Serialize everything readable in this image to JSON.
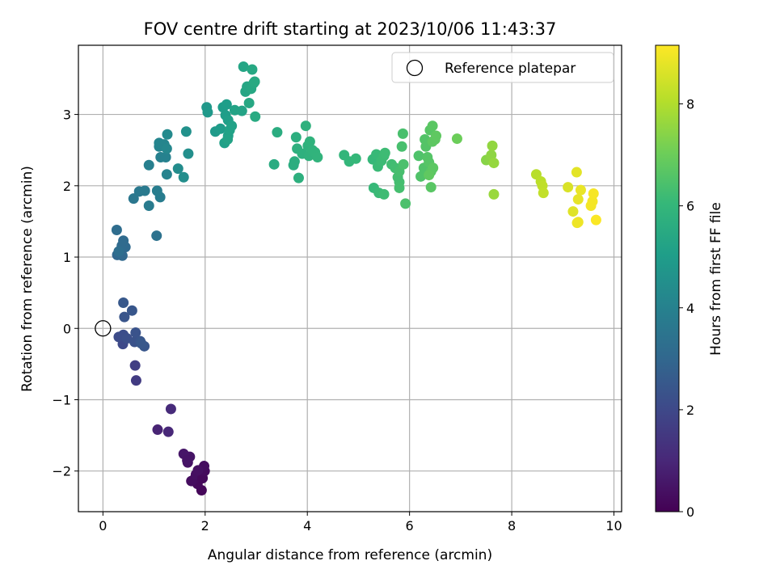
{
  "chart_data": {
    "type": "scatter",
    "title": "FOV centre drift starting at 2023/10/06 11:43:37",
    "xlabel": "Angular distance from reference (arcmin)",
    "ylabel": "Rotation from reference (arcmin)",
    "xlim": [
      -0.48,
      10.15
    ],
    "ylim": [
      -2.57,
      3.97
    ],
    "xticks": [
      0,
      2,
      4,
      6,
      8,
      10
    ],
    "yticks": [
      -2,
      -1,
      0,
      1,
      2,
      3
    ],
    "grid": true,
    "legend": {
      "placement": "top-right",
      "entries": [
        "Reference platepar"
      ]
    },
    "reference_point": {
      "x": 0,
      "y": 0,
      "label": "Reference platepar"
    },
    "colorbar": {
      "label": "Hours from first FF file",
      "min": 0,
      "max": 9.15,
      "ticks": [
        0,
        2,
        4,
        6,
        8
      ],
      "colormap": "viridis"
    },
    "points": [
      [
        1.93,
        -2.27,
        0.15
      ],
      [
        1.85,
        -2.18,
        0.2
      ],
      [
        1.78,
        -2.12,
        0.25
      ],
      [
        1.73,
        -2.14,
        0.3
      ],
      [
        1.82,
        -2.05,
        0.35
      ],
      [
        1.95,
        -2.1,
        0.2
      ],
      [
        1.99,
        -2.0,
        0.25
      ],
      [
        1.98,
        -1.93,
        0.3
      ],
      [
        1.86,
        -1.99,
        0.4
      ],
      [
        1.66,
        -1.88,
        0.45
      ],
      [
        1.7,
        -1.8,
        0.5
      ],
      [
        1.58,
        -1.76,
        0.55
      ],
      [
        1.65,
        -1.85,
        0.5
      ],
      [
        1.07,
        -1.42,
        0.9
      ],
      [
        1.28,
        -1.45,
        1.0
      ],
      [
        1.33,
        -1.13,
        1.1
      ],
      [
        0.65,
        -0.73,
        1.6
      ],
      [
        0.63,
        -0.52,
        1.7
      ],
      [
        0.39,
        -0.22,
        2.0
      ],
      [
        0.31,
        -0.12,
        2.1
      ],
      [
        0.4,
        -0.09,
        2.15
      ],
      [
        0.47,
        -0.14,
        2.2
      ],
      [
        0.62,
        -0.19,
        2.3
      ],
      [
        0.64,
        -0.06,
        2.35
      ],
      [
        0.73,
        -0.18,
        2.4
      ],
      [
        0.81,
        -0.25,
        2.45
      ],
      [
        0.75,
        -0.21,
        2.5
      ],
      [
        0.42,
        0.16,
        2.4
      ],
      [
        0.57,
        0.25,
        2.45
      ],
      [
        0.4,
        0.36,
        2.5
      ],
      [
        0.28,
        1.03,
        3.0
      ],
      [
        0.38,
        1.02,
        3.05
      ],
      [
        0.44,
        1.14,
        3.1
      ],
      [
        0.37,
        1.16,
        3.12
      ],
      [
        0.4,
        1.23,
        3.15
      ],
      [
        0.27,
        1.38,
        3.2
      ],
      [
        0.31,
        1.08,
        3.25
      ],
      [
        1.05,
        1.3,
        3.4
      ],
      [
        0.6,
        1.82,
        3.6
      ],
      [
        0.71,
        1.92,
        3.65
      ],
      [
        0.82,
        1.93,
        3.7
      ],
      [
        0.9,
        1.72,
        3.75
      ],
      [
        1.12,
        1.84,
        3.8
      ],
      [
        1.06,
        1.93,
        3.85
      ],
      [
        0.9,
        2.29,
        3.9
      ],
      [
        1.13,
        2.4,
        3.95
      ],
      [
        1.23,
        2.4,
        4.0
      ],
      [
        1.25,
        2.16,
        4.05
      ],
      [
        1.1,
        2.55,
        4.1
      ],
      [
        1.1,
        2.6,
        4.12
      ],
      [
        1.2,
        2.58,
        4.15
      ],
      [
        1.25,
        2.52,
        4.2
      ],
      [
        1.26,
        2.72,
        4.3
      ],
      [
        1.47,
        2.24,
        4.4
      ],
      [
        1.58,
        2.12,
        4.45
      ],
      [
        1.67,
        2.45,
        4.5
      ],
      [
        1.63,
        2.76,
        4.55
      ],
      [
        2.03,
        3.1,
        4.8
      ],
      [
        2.05,
        3.03,
        4.85
      ],
      [
        2.2,
        2.76,
        4.9
      ],
      [
        2.3,
        2.8,
        4.95
      ],
      [
        2.35,
        3.1,
        5.0
      ],
      [
        2.4,
        2.99,
        5.02
      ],
      [
        2.42,
        3.14,
        5.05
      ],
      [
        2.45,
        2.92,
        5.08
      ],
      [
        2.38,
        2.6,
        5.1
      ],
      [
        2.45,
        2.7,
        5.12
      ],
      [
        2.52,
        2.84,
        5.15
      ],
      [
        2.48,
        2.78,
        5.18
      ],
      [
        2.44,
        2.65,
        5.2
      ],
      [
        2.58,
        3.06,
        5.22
      ],
      [
        2.72,
        3.05,
        5.25
      ],
      [
        2.75,
        3.67,
        5.3
      ],
      [
        2.79,
        3.32,
        5.32
      ],
      [
        2.82,
        3.39,
        5.35
      ],
      [
        2.86,
        3.16,
        5.38
      ],
      [
        2.9,
        3.36,
        5.4
      ],
      [
        2.92,
        3.63,
        5.42
      ],
      [
        2.95,
        3.44,
        5.45
      ],
      [
        2.97,
        3.46,
        5.48
      ],
      [
        2.98,
        2.97,
        5.5
      ],
      [
        3.35,
        2.3,
        5.55
      ],
      [
        3.41,
        2.75,
        5.6
      ],
      [
        3.73,
        2.29,
        5.62
      ],
      [
        3.75,
        2.34,
        5.65
      ],
      [
        3.78,
        2.68,
        5.68
      ],
      [
        3.8,
        2.52,
        5.7
      ],
      [
        3.83,
        2.11,
        5.72
      ],
      [
        3.9,
        2.45,
        5.74
      ],
      [
        3.97,
        2.84,
        5.76
      ],
      [
        4.01,
        2.56,
        5.78
      ],
      [
        4.03,
        2.42,
        5.8
      ],
      [
        4.05,
        2.62,
        5.82
      ],
      [
        4.1,
        2.5,
        5.84
      ],
      [
        4.15,
        2.47,
        5.86
      ],
      [
        4.2,
        2.4,
        5.88
      ],
      [
        4.72,
        2.43,
        5.95
      ],
      [
        4.82,
        2.34,
        6.0
      ],
      [
        4.95,
        2.38,
        6.02
      ],
      [
        5.28,
        2.37,
        6.05
      ],
      [
        5.3,
        1.97,
        6.07
      ],
      [
        5.35,
        2.44,
        6.1
      ],
      [
        5.38,
        2.27,
        6.12
      ],
      [
        5.4,
        1.9,
        6.14
      ],
      [
        5.45,
        2.35,
        6.16
      ],
      [
        5.5,
        2.42,
        6.18
      ],
      [
        5.52,
        2.46,
        6.2
      ],
      [
        5.5,
        1.88,
        6.22
      ],
      [
        5.65,
        2.3,
        6.25
      ],
      [
        5.72,
        2.25,
        6.28
      ],
      [
        5.77,
        2.12,
        6.3
      ],
      [
        5.8,
        2.05,
        6.32
      ],
      [
        5.8,
        1.97,
        6.34
      ],
      [
        5.8,
        2.2,
        6.36
      ],
      [
        5.85,
        2.55,
        6.38
      ],
      [
        5.87,
        2.73,
        6.4
      ],
      [
        5.88,
        2.3,
        6.42
      ],
      [
        5.92,
        1.75,
        6.44
      ],
      [
        6.18,
        2.42,
        6.5
      ],
      [
        6.22,
        2.13,
        6.52
      ],
      [
        6.28,
        2.25,
        6.54
      ],
      [
        6.3,
        2.65,
        6.56
      ],
      [
        6.32,
        2.55,
        6.58
      ],
      [
        6.35,
        2.4,
        6.6
      ],
      [
        6.38,
        2.33,
        6.62
      ],
      [
        6.4,
        2.78,
        6.64
      ],
      [
        6.42,
        2.2,
        6.66
      ],
      [
        6.42,
        1.98,
        6.68
      ],
      [
        6.45,
        2.84,
        6.7
      ],
      [
        6.46,
        2.25,
        6.72
      ],
      [
        6.45,
        2.62,
        6.74
      ],
      [
        6.5,
        2.65,
        6.76
      ],
      [
        6.52,
        2.7,
        6.78
      ],
      [
        6.38,
        2.15,
        6.8
      ],
      [
        6.93,
        2.66,
        7.0
      ],
      [
        7.5,
        2.36,
        7.4
      ],
      [
        7.58,
        2.37,
        7.45
      ],
      [
        7.6,
        2.43,
        7.5
      ],
      [
        7.62,
        2.56,
        7.55
      ],
      [
        7.65,
        2.32,
        7.6
      ],
      [
        7.65,
        1.88,
        7.65
      ],
      [
        8.48,
        2.16,
        8.1
      ],
      [
        8.57,
        2.06,
        8.15
      ],
      [
        8.6,
        2.0,
        8.2
      ],
      [
        8.62,
        1.9,
        8.25
      ],
      [
        9.1,
        1.98,
        8.6
      ],
      [
        9.2,
        1.64,
        8.7
      ],
      [
        9.27,
        2.19,
        8.75
      ],
      [
        9.3,
        1.81,
        8.8
      ],
      [
        9.35,
        1.94,
        8.85
      ],
      [
        9.28,
        1.48,
        8.9
      ],
      [
        9.3,
        1.49,
        8.92
      ],
      [
        9.55,
        1.72,
        9.0
      ],
      [
        9.58,
        1.78,
        9.02
      ],
      [
        9.6,
        1.89,
        9.05
      ],
      [
        9.65,
        1.52,
        9.1
      ]
    ]
  }
}
